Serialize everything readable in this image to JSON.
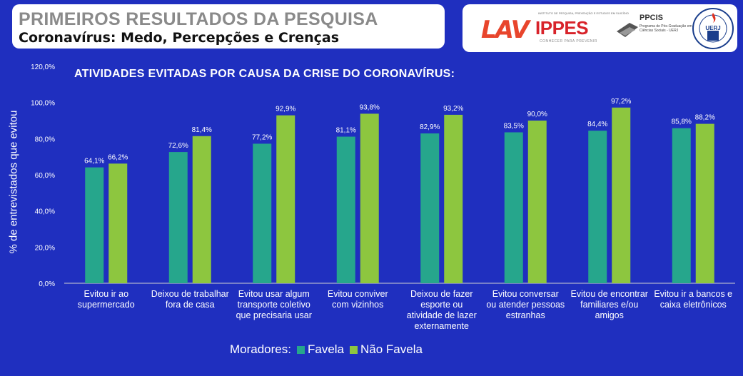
{
  "header": {
    "title": "PRIMEIROS RESULTADOS DA PESQUISA",
    "subtitle": "Coronavírus: Medo, Percepções e Crenças"
  },
  "logos": {
    "lav": "LAV",
    "ippes": "IPPES",
    "ippes_top": "INSTITUTO DE PESQUISA, PREVENÇÃO E ESTUDOS EM SUICÍDIO",
    "ippes_bottom": "CONHECER PARA PREVENIR",
    "ppcis": "PPCIS",
    "ppcis_sub": "Programa de Pós-Graduação em Ciências Sociais - UERJ",
    "uerj": "UERJ",
    "uerj_ring": "UNIVERSIDADE DO ESTADO DO RIO DE JANEIRO"
  },
  "colors": {
    "background": "#1f2fbf",
    "favela": "#26a68c",
    "nao_favela": "#8dc63f"
  },
  "chart_data": {
    "type": "bar",
    "title": "ATIVIDADES EVITADAS POR CAUSA DA CRISE DO CORONAVÍRUS:",
    "ylabel": "% de entrevistados que evitou",
    "xlabel": "",
    "ylim": [
      0,
      120
    ],
    "yticks": [
      "0,0%",
      "20,0%",
      "40,0%",
      "60,0%",
      "80,0%",
      "100,0%",
      "120,0%"
    ],
    "categories": [
      [
        "Evitou ir ao",
        "supermercado"
      ],
      [
        "Deixou de trabalhar",
        "fora de casa"
      ],
      [
        "Evitou usar algum",
        "transporte coletivo",
        "que precisaria usar"
      ],
      [
        "Evitou conviver",
        "com vizinhos"
      ],
      [
        "Deixou de fazer",
        "esporte ou",
        "atividade de lazer",
        "externamente"
      ],
      [
        "Evitou conversar",
        "ou atender pessoas",
        "estranhas"
      ],
      [
        "Evitou de encontrar",
        "familiares e/ou",
        "amigos"
      ],
      [
        "Evitou ir a bancos e",
        "caixa eletrônicos"
      ]
    ],
    "series": [
      {
        "name": "Favela",
        "values": [
          64.1,
          72.6,
          77.2,
          81.1,
          82.9,
          83.5,
          84.4,
          85.8
        ],
        "labels": [
          "64,1%",
          "72,6%",
          "77,2%",
          "81,1%",
          "82,9%",
          "83,5%",
          "84,4%",
          "85,8%"
        ]
      },
      {
        "name": "Não Favela",
        "values": [
          66.2,
          81.4,
          92.9,
          93.8,
          93.2,
          90.0,
          97.2,
          88.2
        ],
        "labels": [
          "66,2%",
          "81,4%",
          "92,9%",
          "93,8%",
          "93,2%",
          "90,0%",
          "97,2%",
          "88,2%"
        ]
      }
    ],
    "legend_prefix": "Moradores:",
    "grid": false,
    "legend_position": "bottom"
  }
}
